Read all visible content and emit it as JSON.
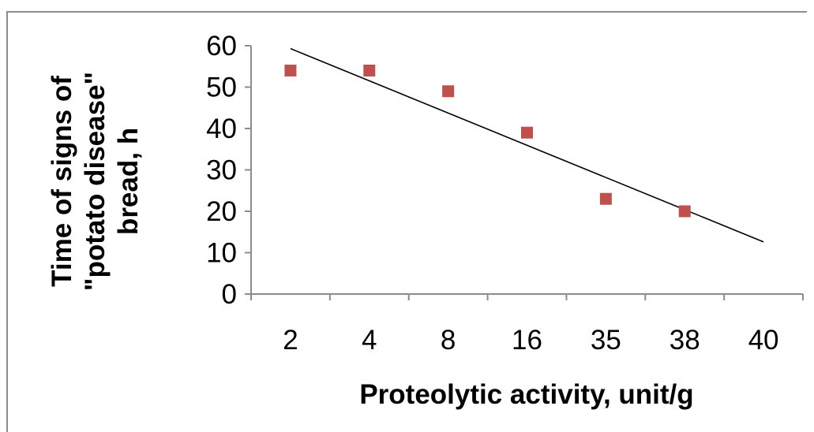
{
  "chart_data": {
    "type": "scatter",
    "title": "",
    "xlabel": "Proteolytic activity, unit/g",
    "ylabel_lines": [
      "Time of signs of",
      "\"potato disease\"",
      "bread, h"
    ],
    "categories": [
      "2",
      "4",
      "8",
      "16",
      "35",
      "38",
      "40"
    ],
    "series": [
      {
        "values": [
          54,
          54,
          49,
          39,
          23,
          20,
          null
        ],
        "marker": "square",
        "color": "#c0504d"
      }
    ],
    "trendline": {
      "type": "linear",
      "start": {
        "category_index": 0,
        "y": 59.3
      },
      "end": {
        "category_index": 6,
        "y": 12.6
      },
      "color": "#000000"
    },
    "y_ticks": [
      0,
      10,
      20,
      30,
      40,
      50,
      60
    ],
    "ylim": [
      0,
      60
    ],
    "grid": false,
    "legend": "none"
  }
}
